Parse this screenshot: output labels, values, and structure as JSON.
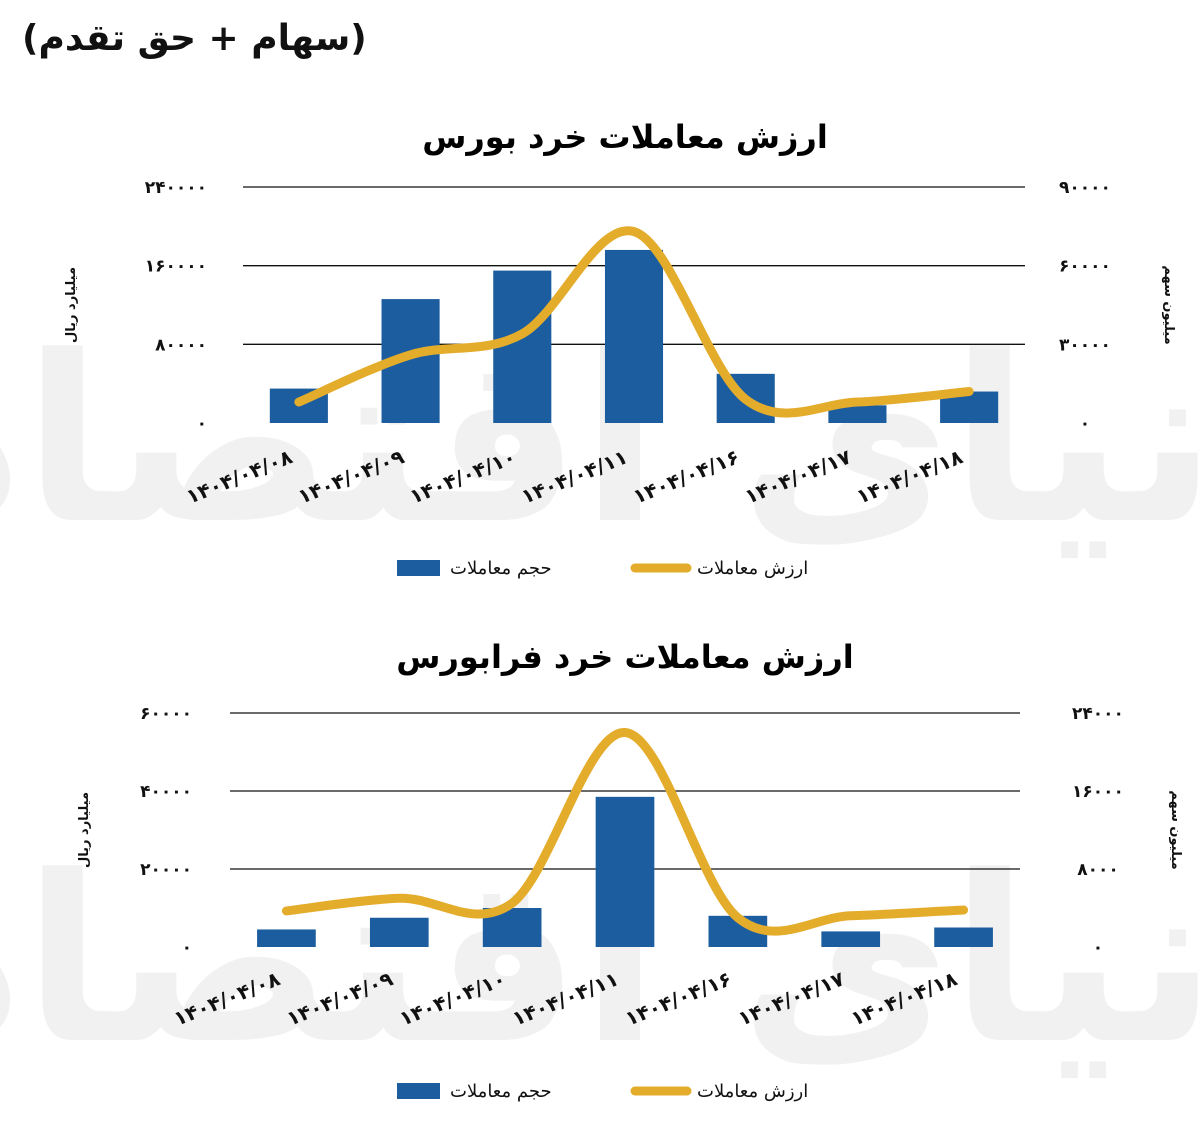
{
  "header": "(سهام + حق تقدم)",
  "legend": {
    "bar_label": "حجم معاملات",
    "line_label": "ارزش معاملات"
  },
  "colors": {
    "bar": "#1c5d9f",
    "line": "#e4ac2b",
    "grid": "#111111"
  },
  "watermark": "دنیای اقتصاد",
  "chart_data": [
    {
      "type": "bar",
      "title": "ارزش معاملات خرد بورس",
      "categories": [
        "۱۴۰۴/۰۴/۰۸",
        "۱۴۰۴/۰۴/۰۹",
        "۱۴۰۴/۰۴/۱۰",
        "۱۴۰۴/۰۴/۱۱",
        "۱۴۰۴/۰۴/۱۶",
        "۱۴۰۴/۰۴/۱۷",
        "۱۴۰۴/۰۴/۱۸"
      ],
      "left_axis": {
        "label": "میلیارد ریال",
        "ticks": [
          "۲۴۰۰۰۰",
          "۱۶۰۰۰۰",
          "۸۰۰۰۰",
          "۰"
        ],
        "ylim": [
          0,
          240000
        ]
      },
      "right_axis": {
        "label": "میلیون سهم",
        "ticks": [
          "۹۰۰۰۰",
          "۶۰۰۰۰",
          "۳۰۰۰۰",
          "۰"
        ],
        "ylim": [
          0,
          90000
        ]
      },
      "series": [
        {
          "name": "حجم معاملات",
          "type": "bar",
          "axis": "left",
          "values": [
            35000,
            126000,
            155000,
            176000,
            50000,
            18000,
            32000
          ]
        },
        {
          "name": "ارزش معاملات",
          "type": "line",
          "axis": "right",
          "values": [
            8000,
            26000,
            34000,
            73000,
            9000,
            8000,
            12000
          ]
        }
      ],
      "grid": true,
      "legend_position": "bottom"
    },
    {
      "type": "bar",
      "title": "ارزش معاملات خرد فرابورس",
      "categories": [
        "۱۴۰۴/۰۴/۰۸",
        "۱۴۰۴/۰۴/۰۹",
        "۱۴۰۴/۰۴/۱۰",
        "۱۴۰۴/۰۴/۱۱",
        "۱۴۰۴/۰۴/۱۶",
        "۱۴۰۴/۰۴/۱۷",
        "۱۴۰۴/۰۴/۱۸"
      ],
      "left_axis": {
        "label": "میلیارد ریال",
        "ticks": [
          "۶۰۰۰۰",
          "۴۰۰۰۰",
          "۲۰۰۰۰",
          "۰"
        ],
        "ylim": [
          0,
          60000
        ]
      },
      "right_axis": {
        "label": "میلیون سهم",
        "ticks": [
          "۲۴۰۰۰",
          "۱۶۰۰۰",
          "۸۰۰۰",
          "۰"
        ],
        "ylim": [
          0,
          24000
        ]
      },
      "series": [
        {
          "name": "حجم معاملات",
          "type": "bar",
          "axis": "left",
          "values": [
            4500,
            7500,
            10000,
            38500,
            8000,
            4000,
            5000
          ]
        },
        {
          "name": "ارزش معاملات",
          "type": "line",
          "axis": "right",
          "values": [
            3700,
            5000,
            4500,
            22000,
            3000,
            3200,
            3800
          ]
        }
      ],
      "grid": true,
      "legend_position": "bottom"
    }
  ]
}
